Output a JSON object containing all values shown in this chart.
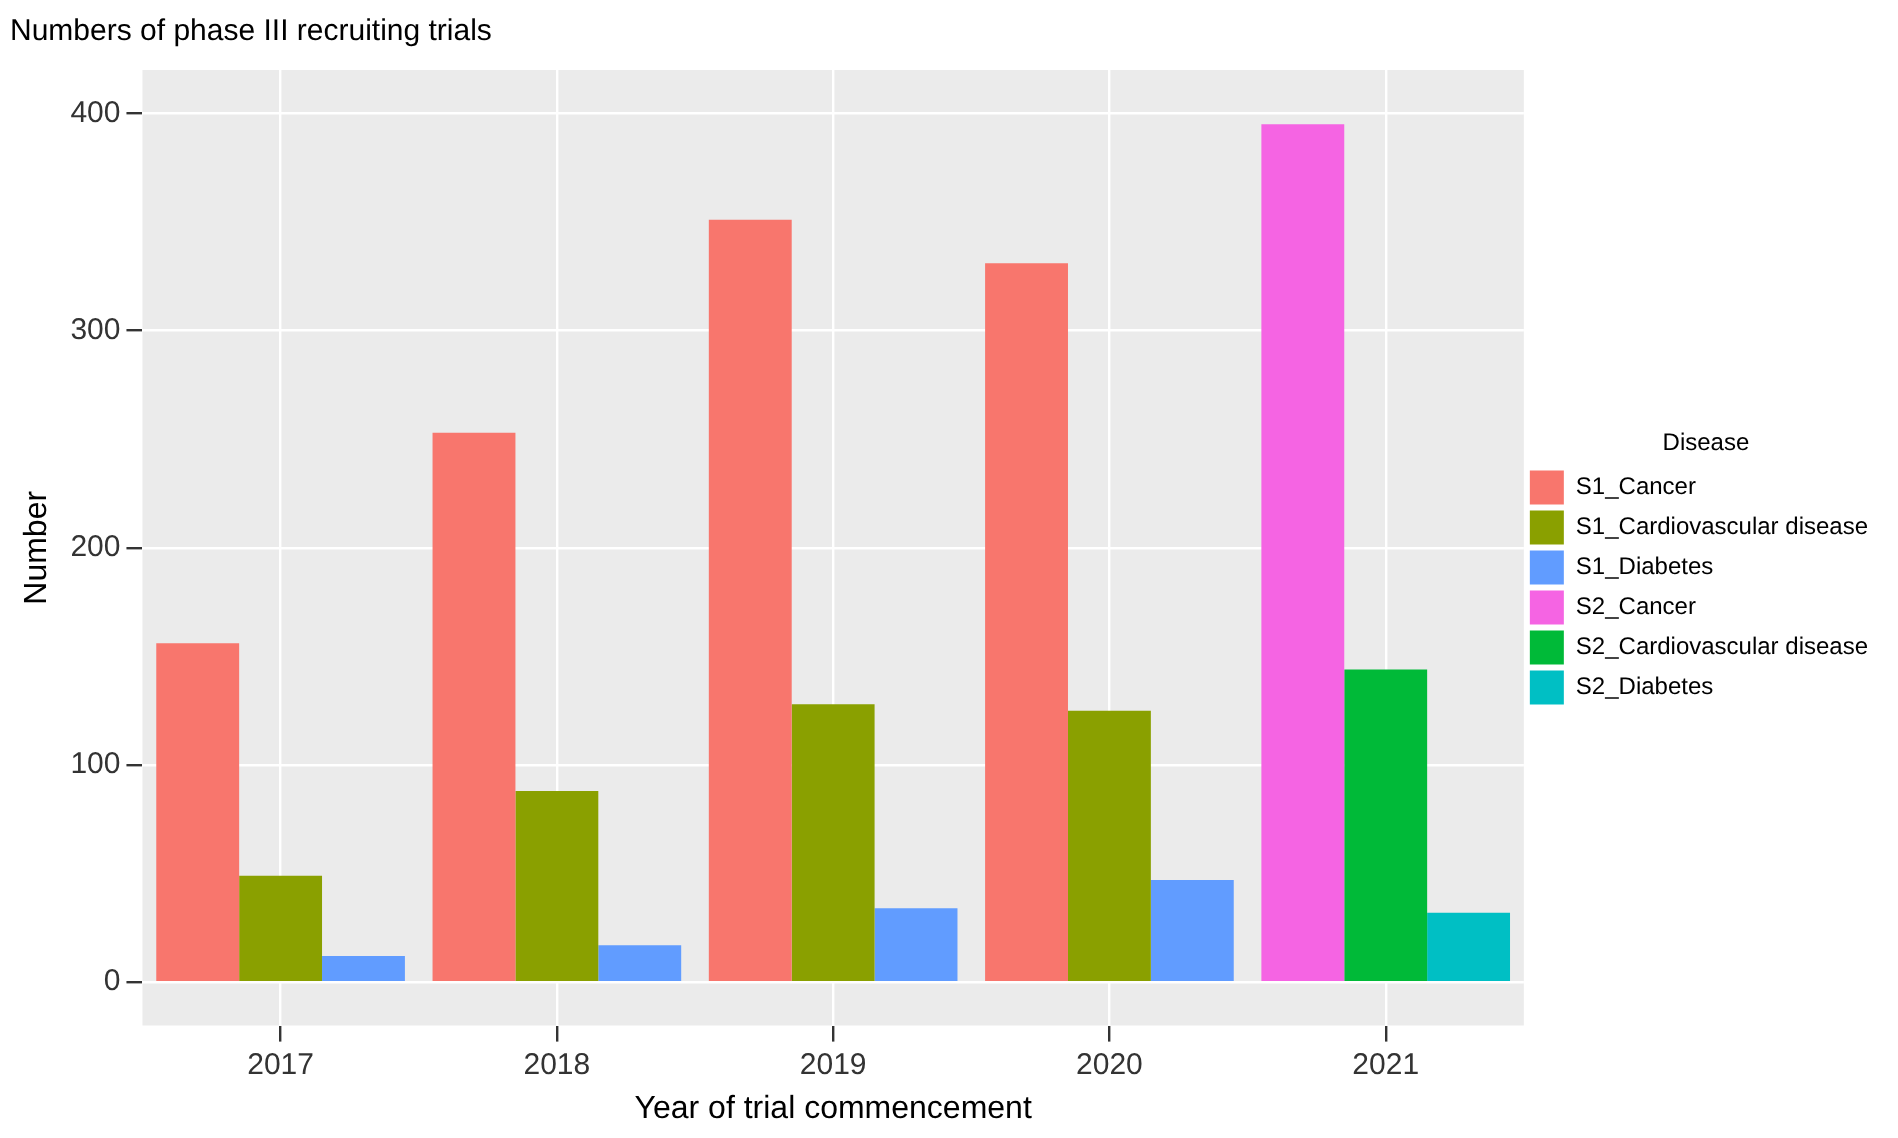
{
  "chart_data": {
    "type": "bar",
    "title": "Numbers of phase III recruiting trials",
    "xlabel": "Year of trial commencement",
    "ylabel": "Number",
    "legend_title": "Disease",
    "categories": [
      "2017",
      "2018",
      "2019",
      "2020",
      "2021"
    ],
    "series": [
      {
        "name": "S1_Cancer",
        "color": "#f8766d",
        "values": [
          156,
          253,
          351,
          331,
          null
        ]
      },
      {
        "name": "S1_Cardiovascular disease",
        "color": "#8aa000",
        "values": [
          49,
          88,
          128,
          125,
          null
        ]
      },
      {
        "name": "S1_Diabetes",
        "color": "#619cff",
        "values": [
          12,
          17,
          34,
          47,
          null
        ]
      },
      {
        "name": "S2_Cancer",
        "color": "#f564e3",
        "values": [
          null,
          null,
          null,
          null,
          395
        ]
      },
      {
        "name": "S2_Cardiovascular disease",
        "color": "#00ba38",
        "values": [
          null,
          null,
          null,
          null,
          144
        ]
      },
      {
        "name": "S2_Diabetes",
        "color": "#00bfc4",
        "values": [
          null,
          null,
          null,
          null,
          32
        ]
      }
    ],
    "ylim": [
      -20,
      420
    ],
    "yticks": [
      0,
      100,
      200,
      300,
      400
    ],
    "grid": true,
    "legend": "right"
  }
}
